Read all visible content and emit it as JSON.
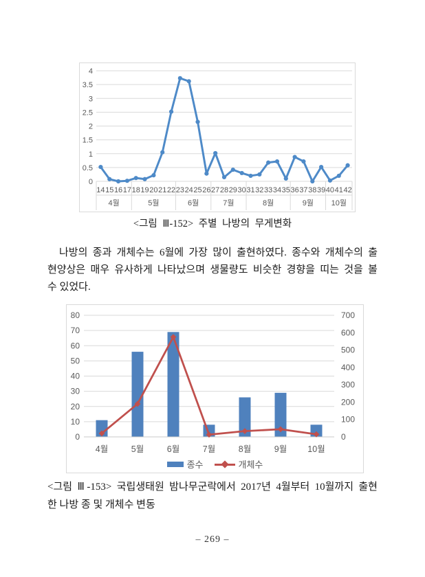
{
  "page": {
    "number_label": "– 269 –",
    "background": "#ffffff"
  },
  "figure1": {
    "caption": "<그림 Ⅲ-152> 주별 나방의 무게변화"
  },
  "paragraph": {
    "lines": [
      "나방의 종과 개체수는 6월에 가장 많이 출현하였다. 종수와 개체수의 출",
      "현양상은 매우 유사하게 나타났으며 생물량도 비슷한 경향을 띠는 것을 볼",
      "수 있었다."
    ]
  },
  "figure2": {
    "caption_lines": [
      "<그림 Ⅲ-153> 국립생태원 밤나무군락에서 2017년 4월부터 10월까지 출현",
      "한 나방 종 및 개체수 변동"
    ]
  },
  "chart_data": [
    {
      "type": "line",
      "title": "",
      "x": [
        "14",
        "15",
        "16",
        "17",
        "18",
        "19",
        "20",
        "21",
        "22",
        "23",
        "24",
        "25",
        "26",
        "27",
        "28",
        "29",
        "30",
        "31",
        "32",
        "33",
        "34",
        "35",
        "36",
        "37",
        "38",
        "39",
        "40",
        "41",
        "42"
      ],
      "month_groups": [
        {
          "label": "4월",
          "span": 4
        },
        {
          "label": "5월",
          "span": 5
        },
        {
          "label": "6월",
          "span": 4
        },
        {
          "label": "7월",
          "span": 4
        },
        {
          "label": "8월",
          "span": 5
        },
        {
          "label": "9월",
          "span": 4
        },
        {
          "label": "10월",
          "span": 3
        }
      ],
      "values": [
        0.52,
        0.08,
        0.0,
        0.02,
        0.12,
        0.08,
        0.22,
        1.05,
        2.52,
        3.73,
        3.62,
        2.15,
        0.28,
        1.02,
        0.15,
        0.42,
        0.3,
        0.2,
        0.25,
        0.68,
        0.72,
        0.1,
        0.88,
        0.72,
        0.0,
        0.52,
        0.03,
        0.2,
        0.58
      ],
      "ylim": [
        0,
        4
      ],
      "ytick_step": 0.5,
      "line_color": "#4e8ac8",
      "grid": true,
      "legend_position": "none"
    },
    {
      "type": "bar+line",
      "title": "",
      "categories": [
        "4월",
        "5월",
        "6월",
        "7월",
        "8월",
        "9월",
        "10월"
      ],
      "series": [
        {
          "name": "종수",
          "type": "bar",
          "axis": "left",
          "color": "#4f81bd",
          "values": [
            11,
            56,
            69,
            8,
            26,
            29,
            8
          ]
        },
        {
          "name": "개체수",
          "type": "line",
          "axis": "right",
          "color": "#c0504d",
          "values": [
            20,
            190,
            575,
            13,
            33,
            44,
            15
          ]
        }
      ],
      "left_ylim": [
        0,
        80
      ],
      "left_ytick_step": 10,
      "right_ylim": [
        0,
        700
      ],
      "right_ytick_step": 100,
      "grid": true,
      "legend_position": "bottom"
    }
  ],
  "chart_style": {
    "grid_color": "#d9d9d9",
    "axis_color": "#c9c9c9",
    "tick_text_color": "#595959"
  }
}
